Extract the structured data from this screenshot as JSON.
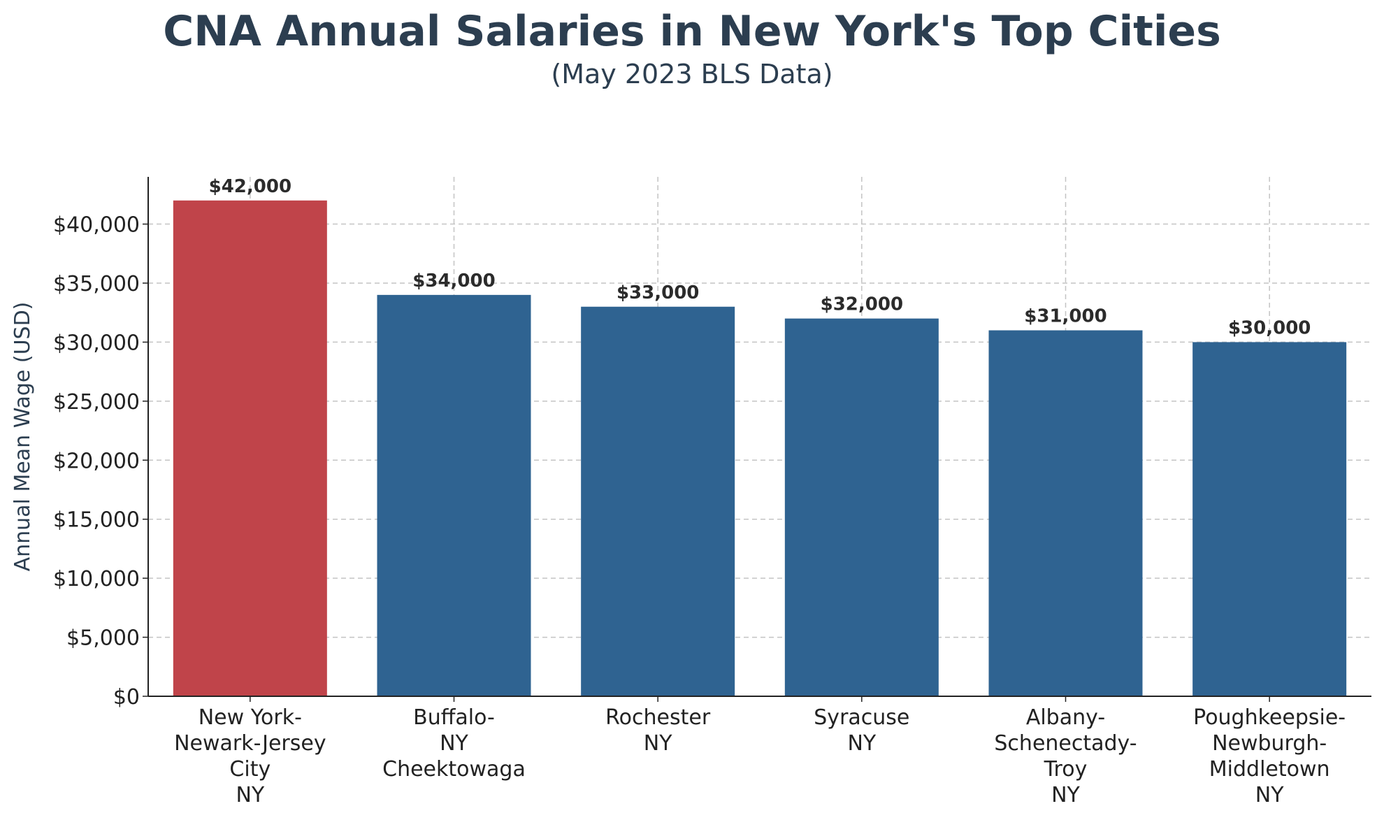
{
  "chart_data": {
    "type": "bar",
    "title": "CNA Annual Salaries in New York's Top Cities",
    "subtitle": "(May 2023 BLS Data)",
    "xlabel": "",
    "ylabel": "Annual Mean Wage (USD)",
    "ylim": [
      0,
      44000
    ],
    "yticks": [
      0,
      5000,
      10000,
      15000,
      20000,
      25000,
      30000,
      35000,
      40000
    ],
    "ytick_labels": [
      "$0",
      "$5,000",
      "$10,000",
      "$15,000",
      "$20,000",
      "$25,000",
      "$30,000",
      "$35,000",
      "$40,000"
    ],
    "grid": true,
    "categories": [
      [
        "New York-",
        "Newark-Jersey",
        "City",
        "NY"
      ],
      [
        "Buffalo-",
        "NY",
        "Cheektowaga"
      ],
      [
        "Rochester",
        "NY"
      ],
      [
        "Syracuse",
        "NY"
      ],
      [
        "Albany-",
        "Schenectady-",
        "Troy",
        "NY"
      ],
      [
        "Poughkeepsie-",
        "Newburgh-",
        "Middletown",
        "NY"
      ]
    ],
    "values": [
      42000,
      34000,
      33000,
      32000,
      31000,
      30000
    ],
    "value_labels": [
      "$42,000",
      "$34,000",
      "$33,000",
      "$32,000",
      "$31,000",
      "$30,000"
    ],
    "colors": [
      "#c0444a",
      "#2f6391",
      "#2f6391",
      "#2f6391",
      "#2f6391",
      "#2f6391"
    ]
  }
}
